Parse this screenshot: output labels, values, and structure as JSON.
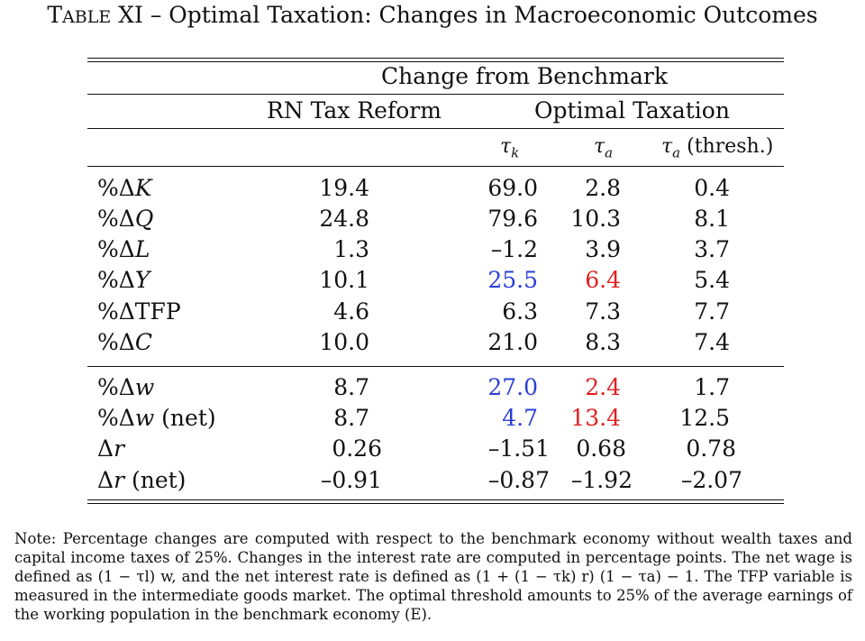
{
  "title": {
    "prefix": "TABLE XI",
    "text": "– Optimal Taxation: Changes in Macroeconomic Outcomes"
  },
  "header": {
    "group": "Change from Benchmark",
    "col_rn": "RN Tax Reform",
    "col_opt": "Optimal Taxation",
    "sub_tk": "τk",
    "sub_ta": "τa",
    "sub_ta_thresh": "τa (thresh.)"
  },
  "rows": [
    {
      "label": "%ΔK",
      "rn": "19.4",
      "tk": "69.0",
      "ta": "2.8",
      "th": "0.4"
    },
    {
      "label": "%ΔQ",
      "rn": "24.8",
      "tk": "79.6",
      "ta": "10.3",
      "th": "8.1"
    },
    {
      "label": "%ΔL",
      "rn": "1.3",
      "tk": "–1.2",
      "ta": "3.9",
      "th": "3.7"
    },
    {
      "label": "%ΔY",
      "rn": "10.1",
      "tk": "25.5",
      "ta": "6.4",
      "th": "5.4"
    },
    {
      "label": "%ΔTFP",
      "rn": "4.6",
      "tk": "6.3",
      "ta": "7.3",
      "th": "7.7"
    },
    {
      "label": "%ΔC",
      "rn": "10.0",
      "tk": "21.0",
      "ta": "8.3",
      "th": "7.4"
    },
    {
      "label": "%Δw",
      "rn": "8.7",
      "tk": "27.0",
      "ta": "2.4",
      "th": "1.7"
    },
    {
      "label": "%Δw (net)",
      "rn": "8.7",
      "tk": "4.7",
      "ta": "13.4",
      "th": "12.5"
    },
    {
      "label": "Δr",
      "rn": "0.26",
      "tk": "–1.51",
      "ta": "0.68",
      "th": "0.78"
    },
    {
      "label": "Δr (net)",
      "rn": "–0.91",
      "tk": "–0.87",
      "ta": "–1.92",
      "th": "–2.07"
    }
  ],
  "colors": {
    "blue": "#2a3fd6",
    "red": "#e02020"
  },
  "note": "Note: Percentage changes are computed with respect to the benchmark economy without wealth taxes and capital income taxes of 25%. Changes in the interest rate are computed in percentage points. The net wage is defined as (1 − τl) w, and the net interest rate is defined as (1 + (1 − τk) r) (1 − τa) − 1. The TFP variable is measured in the intermediate goods market. The optimal threshold amounts to 25% of the average earnings of the working population in the benchmark economy (E)."
}
